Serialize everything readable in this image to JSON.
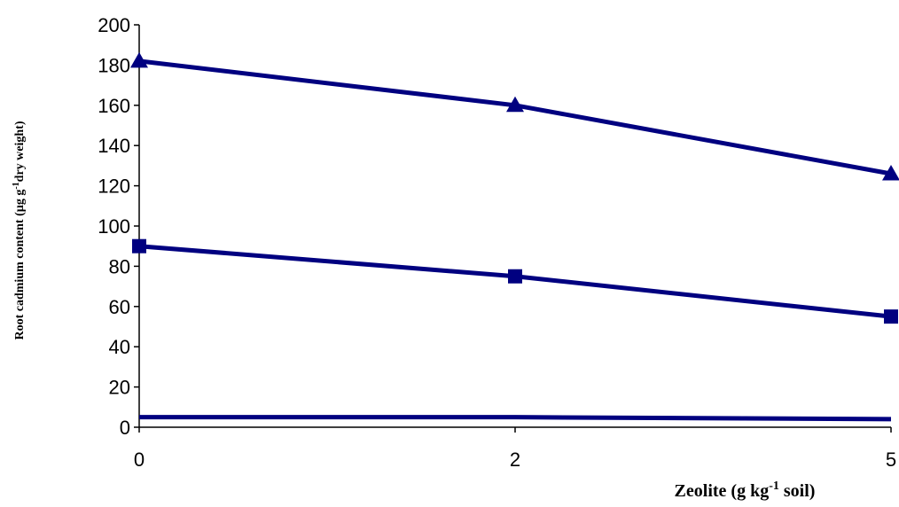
{
  "chart_data": {
    "type": "line",
    "xlabel": {
      "main": "Zeolite (g kg",
      "sup": "-1",
      "tail": " soil)"
    },
    "ylabel": {
      "main": "Root cadmium content (µg g",
      "sup": "-1",
      "tail": "dry weight)"
    },
    "categories": [
      "0",
      "2",
      "5"
    ],
    "ylim": [
      0,
      200
    ],
    "yticks": [
      0,
      20,
      40,
      60,
      80,
      100,
      120,
      140,
      160,
      180,
      200
    ],
    "grid": false,
    "legend": "none",
    "series": [
      {
        "marker": "triangle",
        "color": "#000080",
        "values": [
          182,
          160,
          126
        ]
      },
      {
        "marker": "square",
        "color": "#000080",
        "values": [
          90,
          75,
          55
        ]
      },
      {
        "marker": "none",
        "color": "#000080",
        "values": [
          5,
          5,
          4
        ]
      }
    ]
  }
}
